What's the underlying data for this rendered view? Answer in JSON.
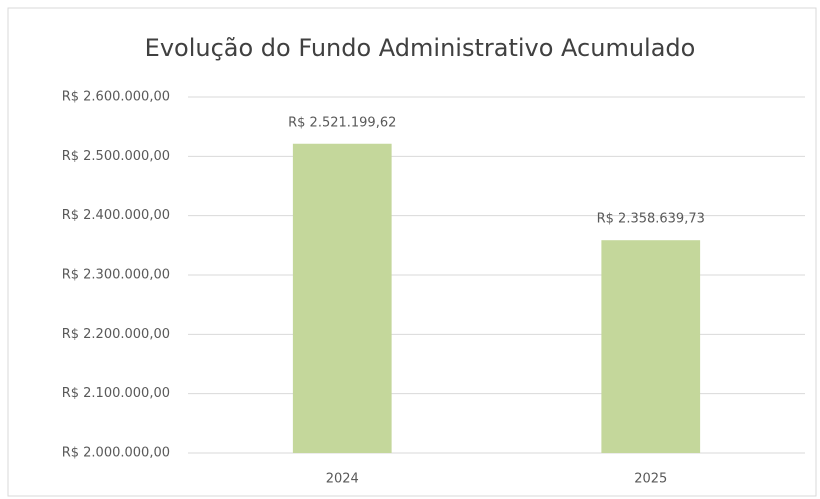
{
  "chart_data": {
    "type": "bar",
    "title": "Evolução do Fundo Administrativo Acumulado",
    "categories": [
      "2024",
      "2025"
    ],
    "values": [
      2521199.62,
      2358639.73
    ],
    "value_labels": [
      "R$ 2.521.199,62",
      "R$ 2.358.639,73"
    ],
    "color": "#c4d79b",
    "ylim": [
      2000000,
      2600000
    ],
    "yticks": [
      {
        "value": 2000000,
        "label": "R$ 2.000.000,00"
      },
      {
        "value": 2100000,
        "label": "R$ 2.100.000,00"
      },
      {
        "value": 2200000,
        "label": "R$ 2.200.000,00"
      },
      {
        "value": 2300000,
        "label": "R$ 2.300.000,00"
      },
      {
        "value": 2400000,
        "label": "R$ 2.400.000,00"
      },
      {
        "value": 2500000,
        "label": "R$ 2.500.000,00"
      },
      {
        "value": 2600000,
        "label": "R$ 2.600.000,00"
      }
    ],
    "grid": true
  }
}
